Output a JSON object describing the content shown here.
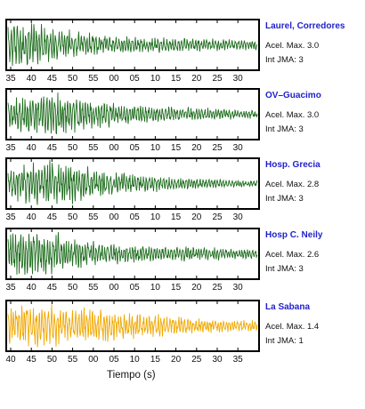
{
  "chart_data": [
    {
      "type": "line",
      "station": "Laurel, Corredores",
      "acel_label": "Acel. Max. 3.0",
      "jma_label": "Int JMA: 3",
      "color": "#1f6e1f",
      "x_ticks": [
        "35",
        "40",
        "45",
        "50",
        "55",
        "00",
        "05",
        "10",
        "15",
        "20",
        "25",
        "30"
      ],
      "amp_profile": [
        1.0,
        0.95,
        0.75,
        0.55,
        0.45,
        0.35,
        0.32,
        0.3,
        0.28,
        0.25,
        0.22,
        0.2
      ]
    },
    {
      "type": "line",
      "station": "OV–Guacimo",
      "acel_label": "Acel. Max. 3.0",
      "jma_label": "Int JMA: 3",
      "color": "#1f6e1f",
      "x_ticks": [
        "35",
        "40",
        "45",
        "50",
        "55",
        "00",
        "05",
        "10",
        "15",
        "20",
        "25",
        "30"
      ],
      "amp_profile": [
        0.7,
        0.9,
        0.95,
        0.8,
        0.6,
        0.45,
        0.38,
        0.32,
        0.28,
        0.24,
        0.2,
        0.18
      ]
    },
    {
      "type": "line",
      "station": "Hosp. Grecia",
      "acel_label": "Acel. Max. 2.8",
      "jma_label": "Int JMA: 3",
      "color": "#1f6e1f",
      "x_ticks": [
        "35",
        "40",
        "45",
        "50",
        "55",
        "00",
        "05",
        "10",
        "15",
        "20",
        "25",
        "30"
      ],
      "amp_profile": [
        0.6,
        0.85,
        0.95,
        0.8,
        0.55,
        0.45,
        0.38,
        0.3,
        0.25,
        0.2,
        0.15,
        0.12
      ]
    },
    {
      "type": "line",
      "station": "Hosp C. Neily",
      "acel_label": "Acel. Max. 2.6",
      "jma_label": "Int JMA: 3",
      "color": "#1f6e1f",
      "x_ticks": [
        "35",
        "40",
        "45",
        "50",
        "55",
        "00",
        "05",
        "10",
        "15",
        "20",
        "25",
        "30"
      ],
      "amp_profile": [
        0.9,
        1.0,
        0.85,
        0.65,
        0.5,
        0.4,
        0.35,
        0.32,
        0.3,
        0.28,
        0.25,
        0.22
      ]
    },
    {
      "type": "line",
      "station": "La Sabana",
      "acel_label": "Acel. Max. 1.4",
      "jma_label": "Int JMA: 1",
      "color": "#f0a800",
      "x_ticks": [
        "40",
        "45",
        "50",
        "55",
        "00",
        "05",
        "10",
        "15",
        "20",
        "25",
        "30",
        "35"
      ],
      "amp_profile": [
        0.75,
        0.9,
        0.85,
        0.8,
        0.7,
        0.6,
        0.55,
        0.5,
        0.35,
        0.28,
        0.25,
        0.22
      ]
    }
  ],
  "xlabel": "Tiempo (s)"
}
